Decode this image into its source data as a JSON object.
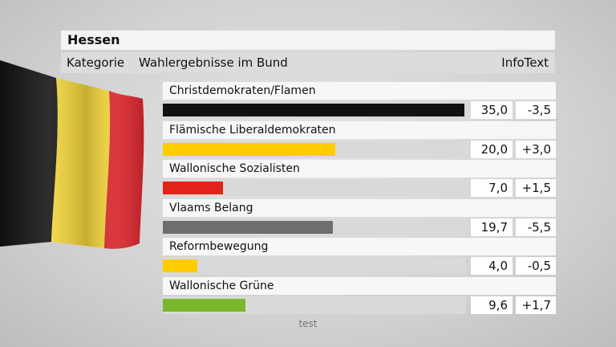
{
  "header": {
    "title": "Hessen",
    "category_label": "Kategorie",
    "chart_title": "Wahlergebnisse im Bund",
    "info_label": "InfoText"
  },
  "footer": {
    "text": "test"
  },
  "flag": {
    "icon": "belgium-flag-icon",
    "colors": [
      "#111111",
      "#f2d33a",
      "#d9272e"
    ]
  },
  "chart_data": {
    "type": "bar",
    "title": "Wahlergebnisse im Bund",
    "xlim": [
      0,
      35
    ],
    "series": [
      {
        "name": "Christdemokraten/Flamen",
        "value": 35.0,
        "value_text": "35,0",
        "change_text": "-3,5",
        "color": "#111111"
      },
      {
        "name": "Flämische Liberaldemokraten",
        "value": 20.0,
        "value_text": "20,0",
        "change_text": "+3,0",
        "color": "#ffcc00"
      },
      {
        "name": "Wallonische Sozialisten",
        "value": 7.0,
        "value_text": "7,0",
        "change_text": "+1,5",
        "color": "#e2231a"
      },
      {
        "name": "Vlaams Belang",
        "value": 19.7,
        "value_text": "19,7",
        "change_text": "-5,5",
        "color": "#6e6e6e"
      },
      {
        "name": "Reformbewegung",
        "value": 4.0,
        "value_text": "4,0",
        "change_text": "-0,5",
        "color": "#ffcc00"
      },
      {
        "name": "Wallonische Grüne",
        "value": 9.6,
        "value_text": "9,6",
        "change_text": "+1,7",
        "color": "#78b82a"
      }
    ]
  }
}
